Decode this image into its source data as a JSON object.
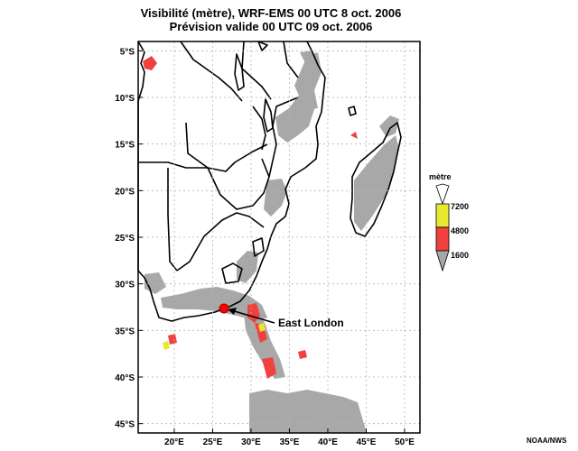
{
  "title": {
    "line1": "Visibilité (mètre), WRF-EMS 00 UTC 8 oct. 2006",
    "line2": "Prévision valide 00 UTC 09 oct. 2006"
  },
  "axes": {
    "lat_labels": [
      "5°S",
      "10°S",
      "15°S",
      "20°S",
      "25°S",
      "30°S",
      "35°S",
      "40°S",
      "45°S"
    ],
    "lon_labels": [
      "20°E",
      "25°E",
      "30°E",
      "35°E",
      "40°E",
      "45°E",
      "50°E"
    ],
    "lat_values": [
      -5,
      -10,
      -15,
      -20,
      -25,
      -30,
      -35,
      -40,
      -45
    ],
    "lon_values": [
      20,
      25,
      30,
      35,
      40,
      45,
      50
    ],
    "lat_range": [
      -46,
      -4
    ],
    "lon_range": [
      15.3,
      52
    ]
  },
  "legend": {
    "title": "mètre",
    "items": [
      {
        "label": "7200",
        "color": "#e8e830"
      },
      {
        "label": "4800",
        "color": "#f04040"
      },
      {
        "label": "1600",
        "color": "#a8a8a8"
      }
    ]
  },
  "marker": {
    "label": "East London",
    "lon": 27.0,
    "lat": -33.0,
    "color": "#ff0000"
  },
  "credit": "NOAA/NWS",
  "colors": {
    "fog_gray": "#a8a8a8",
    "fog_red": "#f04040",
    "fog_yellow": "#e8e830",
    "coast": "#000000",
    "grid": "#b4b4b4"
  }
}
